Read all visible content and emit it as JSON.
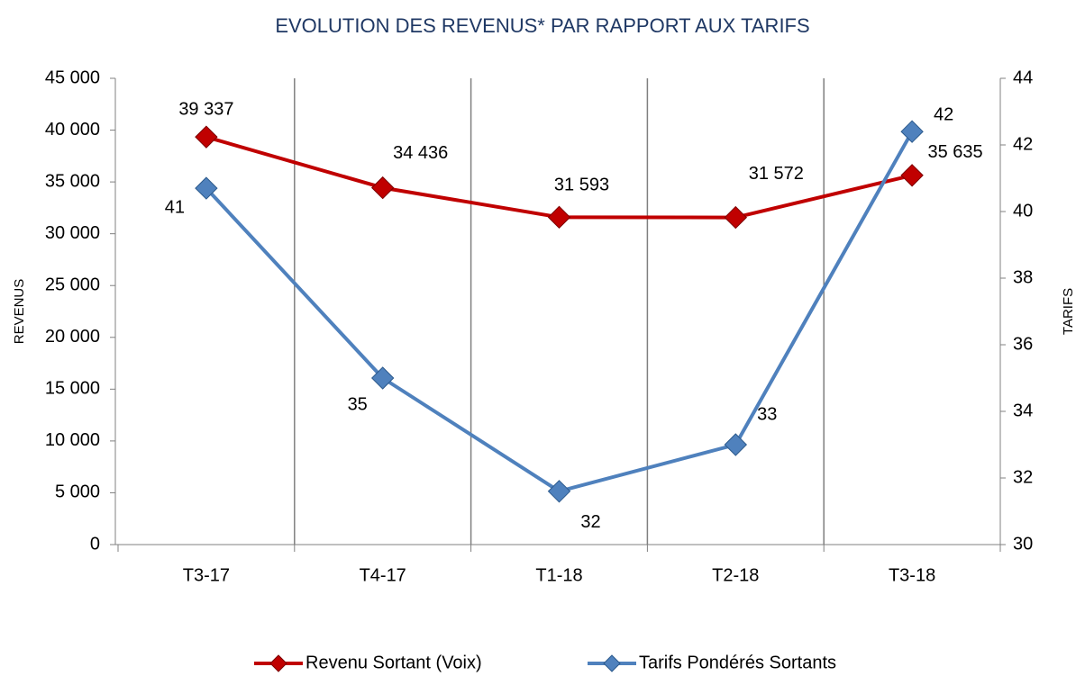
{
  "chart_data": {
    "type": "line",
    "title": "EVOLUTION DES REVENUS* PAR RAPPORT AUX TARIFS",
    "y_label": "REVENUS",
    "y2_label": "TARIFS",
    "categories": [
      "T3-17",
      "T4-17",
      "T1-18",
      "T2-18",
      "T3-18"
    ],
    "series": [
      {
        "name": "Revenu Sortant (Voix)",
        "color": "#c00000",
        "axis": "y",
        "values": [
          39337,
          34436,
          31593,
          31572,
          35635
        ],
        "value_labels": [
          "39 337",
          "34 436",
          "31 593",
          "31 572",
          "35 635"
        ]
      },
      {
        "name": "Tarifs Pondérés Sortants",
        "color": "#4f81bd",
        "axis": "y2",
        "values": [
          40.7,
          35,
          31.6,
          33,
          42.4
        ],
        "value_labels": [
          "41",
          "35",
          "32",
          "33",
          "42"
        ]
      }
    ],
    "ylim": [
      0,
      45000
    ],
    "yticks": [
      0,
      {
        "value": 5000,
        "label": "5 000"
      },
      {
        "value": 10000,
        "label": "10 000"
      },
      {
        "value": 15000,
        "label": "15 000"
      },
      {
        "value": 20000,
        "label": "20 000"
      },
      {
        "value": 25000,
        "label": "25 000"
      },
      {
        "value": 30000,
        "label": "30 000"
      },
      {
        "value": 35000,
        "label": "35 000"
      },
      {
        "value": 40000,
        "label": "40 000"
      },
      {
        "value": 45000,
        "label": "45 000"
      }
    ],
    "y2lim": [
      30,
      44
    ],
    "y2ticks": [
      30,
      32,
      34,
      36,
      38,
      40,
      42,
      44
    ],
    "legend": "bottom"
  }
}
